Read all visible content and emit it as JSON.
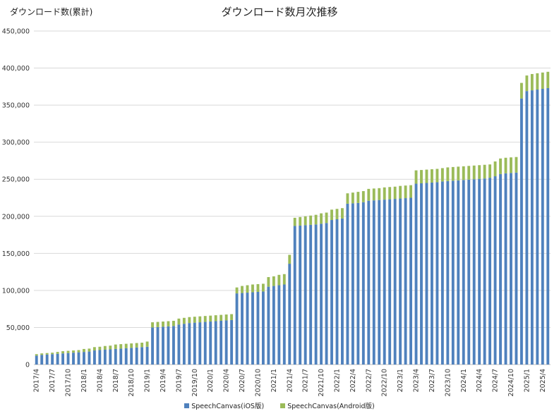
{
  "chart_data": {
    "type": "bar",
    "stacked": true,
    "title": "ダウンロード数月次推移",
    "ylabel": "ダウンロード数(累計)",
    "ylim": [
      0,
      450000
    ],
    "yticks": [
      "0",
      "50,000",
      "100,000",
      "150,000",
      "200,000",
      "250,000",
      "300,000",
      "350,000",
      "400,000",
      "450,000"
    ],
    "grid": true,
    "legend_position": "bottom",
    "start_month": "2017/4",
    "xtick_labels": [
      "2017/4",
      "2017/7",
      "2017/10",
      "2018/1",
      "2018/4",
      "2018/7",
      "2018/10",
      "2019/1",
      "2019/4",
      "2019/7",
      "2019/10",
      "2020/1",
      "2020/4",
      "2020/7",
      "2020/10",
      "2021/1",
      "2021/4",
      "2021/7",
      "2021/10",
      "2022/1",
      "2022/4",
      "2022/7",
      "2022/10",
      "2023/1",
      "2023/4",
      "2023/7",
      "2023/10",
      "2024/1",
      "2024/4",
      "2024/7",
      "2024/10",
      "2025/1",
      "2025/4"
    ],
    "series": [
      {
        "name": "SpeechCanvas(iOS版)",
        "color": "#4f81bd",
        "values": [
          12000,
          13000,
          13500,
          14000,
          14500,
          15000,
          15500,
          16000,
          16500,
          17000,
          17500,
          19000,
          19500,
          20000,
          20500,
          21000,
          21500,
          22000,
          22500,
          23000,
          23500,
          24000,
          50000,
          50500,
          51000,
          51500,
          52000,
          54000,
          55000,
          56000,
          56500,
          57000,
          57500,
          58000,
          58500,
          59000,
          59500,
          60000,
          96000,
          96500,
          97000,
          97500,
          98000,
          98500,
          105000,
          106000,
          107000,
          108000,
          136000,
          187000,
          187500,
          188000,
          188500,
          189000,
          190000,
          191000,
          195000,
          196000,
          197000,
          217000,
          217500,
          218000,
          219000,
          221000,
          221500,
          222000,
          222500,
          223000,
          223500,
          224000,
          224500,
          225000,
          244000,
          244500,
          245000,
          245500,
          246000,
          247000,
          247500,
          248000,
          248500,
          249000,
          249500,
          250000,
          250500,
          251000,
          252000,
          254000,
          257000,
          258000,
          258500,
          259000,
          359000,
          369000,
          370000,
          371000,
          372000,
          373000
        ],
        "values_total": [
          14000,
          15000,
          15500,
          16000,
          17000,
          18000,
          18500,
          19000,
          19500,
          21000,
          21500,
          23500,
          24000,
          25000,
          25500,
          27000,
          27500,
          28000,
          28500,
          29000,
          29500,
          31000,
          57000,
          57500,
          58000,
          58500,
          59000,
          62000,
          63000,
          64000,
          64500,
          65000,
          65500,
          66000,
          66500,
          67000,
          67500,
          68000,
          104000,
          106000,
          107000,
          108000,
          108500,
          109000,
          118000,
          119000,
          121000,
          122000,
          148000,
          198000,
          199000,
          200000,
          201000,
          202000,
          204000,
          205000,
          209000,
          210000,
          211000,
          231000,
          232000,
          233000,
          234000,
          237000,
          237500,
          238000,
          239000,
          239500,
          240000,
          241000,
          241500,
          242000,
          262000,
          262500,
          263000,
          263500,
          264000,
          265000,
          266000,
          266500,
          267000,
          267500,
          268000,
          268500,
          269000,
          269500,
          270000,
          274000,
          278000,
          279000,
          279500,
          280000,
          380000,
          390000,
          392000,
          393000,
          394000,
          395000
        ]
      },
      {
        "name": "SpeechCanvas(Android版)",
        "color": "#9bbb59"
      }
    ]
  }
}
